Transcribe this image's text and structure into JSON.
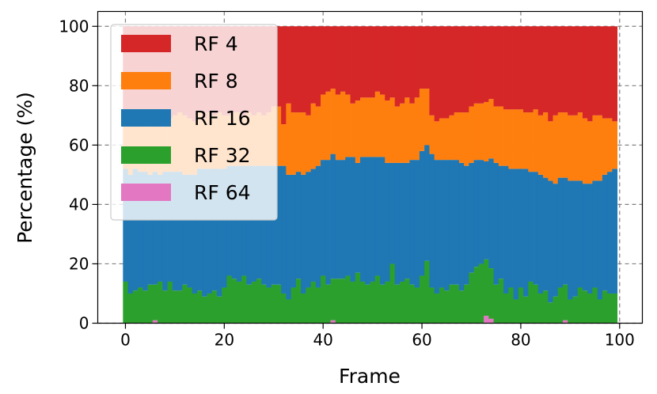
{
  "chart_data": {
    "type": "bar",
    "stacked": true,
    "xlabel": "Frame",
    "ylabel": "Percentage (%)",
    "xlim": [
      -5.6,
      104.6
    ],
    "ylim": [
      0,
      105
    ],
    "xticks": [
      0,
      20,
      40,
      60,
      80,
      100
    ],
    "yticks": [
      0,
      20,
      40,
      60,
      80,
      100
    ],
    "grid": true,
    "legend_position": "top-left",
    "x": [
      0,
      1,
      2,
      3,
      4,
      5,
      6,
      7,
      8,
      9,
      10,
      11,
      12,
      13,
      14,
      15,
      16,
      17,
      18,
      19,
      20,
      21,
      22,
      23,
      24,
      25,
      26,
      27,
      28,
      29,
      30,
      31,
      32,
      33,
      34,
      35,
      36,
      37,
      38,
      39,
      40,
      41,
      42,
      43,
      44,
      45,
      46,
      47,
      48,
      49,
      50,
      51,
      52,
      53,
      54,
      55,
      56,
      57,
      58,
      59,
      60,
      61,
      62,
      63,
      64,
      65,
      66,
      67,
      68,
      69,
      70,
      71,
      72,
      73,
      74,
      75,
      76,
      77,
      78,
      79,
      80,
      81,
      82,
      83,
      84,
      85,
      86,
      87,
      88,
      89,
      90,
      91,
      92,
      93,
      94,
      95,
      96,
      97,
      98,
      99
    ],
    "series": [
      {
        "name": "RF 64",
        "color": "#e377c2",
        "values": [
          0,
          0,
          0,
          0,
          0,
          0,
          1,
          0,
          0,
          0,
          0,
          0,
          0,
          0,
          0,
          0,
          0,
          0,
          0,
          0,
          0,
          0,
          0,
          0,
          0,
          0,
          0,
          0,
          0,
          0,
          0,
          0,
          0,
          0,
          0,
          0,
          0,
          0,
          0,
          0,
          0,
          0,
          1,
          0,
          0,
          0,
          0,
          0,
          0,
          0,
          0,
          0,
          0,
          0,
          0,
          0,
          0,
          0,
          0,
          0,
          0,
          0,
          0,
          0,
          0,
          0,
          0,
          0,
          0,
          0,
          0,
          0,
          0,
          2.5,
          1.5,
          0,
          0,
          0,
          0,
          0,
          0,
          0,
          0,
          0,
          0,
          0,
          0,
          0,
          0,
          1,
          0,
          0,
          0,
          0,
          0,
          0,
          0,
          0,
          0,
          0
        ]
      },
      {
        "name": "RF 32",
        "color": "#2ca02c",
        "values": [
          14,
          10,
          11,
          12,
          11,
          13,
          12,
          14,
          11,
          14,
          11,
          11,
          13,
          12,
          10,
          11,
          9,
          10,
          11,
          9,
          12,
          16,
          15,
          14,
          16,
          13,
          14,
          15,
          13,
          12,
          13,
          13,
          10,
          8,
          12,
          15,
          10,
          12,
          14,
          12,
          16,
          13,
          14,
          15,
          15,
          16,
          14,
          17,
          14,
          13,
          14,
          16,
          13,
          14,
          20,
          13,
          14,
          15,
          13,
          12,
          16,
          21,
          12,
          10,
          12,
          11,
          13,
          13,
          11,
          13,
          17,
          19,
          20,
          19,
          17,
          13,
          15,
          10,
          12,
          8,
          12,
          9,
          14,
          13,
          10,
          11,
          7,
          9,
          12,
          12,
          8,
          9,
          12,
          11,
          10,
          12,
          8,
          11,
          10,
          10
        ]
      },
      {
        "name": "RF 16",
        "color": "#1f77b4",
        "values": [
          38,
          40,
          41,
          39,
          40,
          37,
          38,
          36,
          40,
          37,
          40,
          40,
          37,
          38,
          40,
          41,
          43,
          42,
          41,
          43,
          40,
          37,
          38,
          39,
          37,
          40,
          39,
          38,
          40,
          41,
          40,
          40,
          43,
          42,
          38,
          36,
          40,
          39,
          38,
          41,
          39,
          42,
          42,
          40,
          40,
          40,
          42,
          37,
          42,
          43,
          42,
          40,
          43,
          40,
          34,
          41,
          40,
          39,
          42,
          43,
          42,
          39,
          45,
          45,
          43,
          44,
          42,
          42,
          43,
          40,
          37,
          36,
          35,
          33,
          37,
          41,
          38,
          43,
          40,
          44,
          40,
          43,
          37,
          38,
          40,
          38,
          41,
          38,
          37,
          36,
          40,
          39,
          36,
          36,
          37,
          36,
          40,
          39,
          41,
          42
        ]
      },
      {
        "name": "RF 8",
        "color": "#ff7f0e",
        "values": [
          18,
          20,
          19,
          19,
          18,
          20,
          18,
          21,
          20,
          18,
          19,
          20,
          20,
          19,
          18,
          19,
          17,
          19,
          18,
          19,
          18,
          17,
          18,
          18,
          17,
          18,
          17,
          18,
          17,
          18,
          20,
          20,
          14,
          24,
          21,
          20,
          21,
          19,
          22,
          20,
          22,
          23,
          22,
          22,
          23,
          21,
          18,
          21,
          20,
          20,
          20,
          22,
          21,
          21,
          22,
          19,
          20,
          22,
          19,
          21,
          21,
          19,
          13,
          13,
          14,
          14,
          15,
          16,
          17,
          18,
          19,
          19,
          19,
          20,
          20,
          19,
          20,
          19,
          20,
          20,
          20,
          19,
          20,
          21,
          20,
          22,
          20,
          23,
          22,
          22,
          22,
          22,
          23,
          22,
          21,
          22,
          22,
          19,
          18,
          16
        ]
      },
      {
        "name": "RF 4",
        "color": "#d62728",
        "values": [
          30,
          30,
          29,
          30,
          31,
          30,
          31,
          29,
          29,
          31,
          30,
          29,
          30,
          31,
          32,
          29,
          31,
          29,
          30,
          29,
          30,
          30,
          29,
          29,
          30,
          29,
          30,
          29,
          30,
          29,
          27,
          27,
          33,
          26,
          29,
          29,
          29,
          30,
          26,
          27,
          23,
          22,
          21,
          23,
          22,
          23,
          26,
          25,
          24,
          24,
          24,
          22,
          23,
          25,
          24,
          27,
          26,
          24,
          26,
          24,
          21,
          21,
          30,
          32,
          31,
          31,
          30,
          29,
          29,
          29,
          27,
          26,
          26,
          25.5,
          24.5,
          27,
          27,
          28,
          28,
          28,
          28,
          29,
          29,
          28,
          30,
          29,
          32,
          30,
          29,
          29,
          30,
          30,
          29,
          31,
          32,
          30,
          30,
          31,
          31,
          32
        ]
      }
    ]
  }
}
